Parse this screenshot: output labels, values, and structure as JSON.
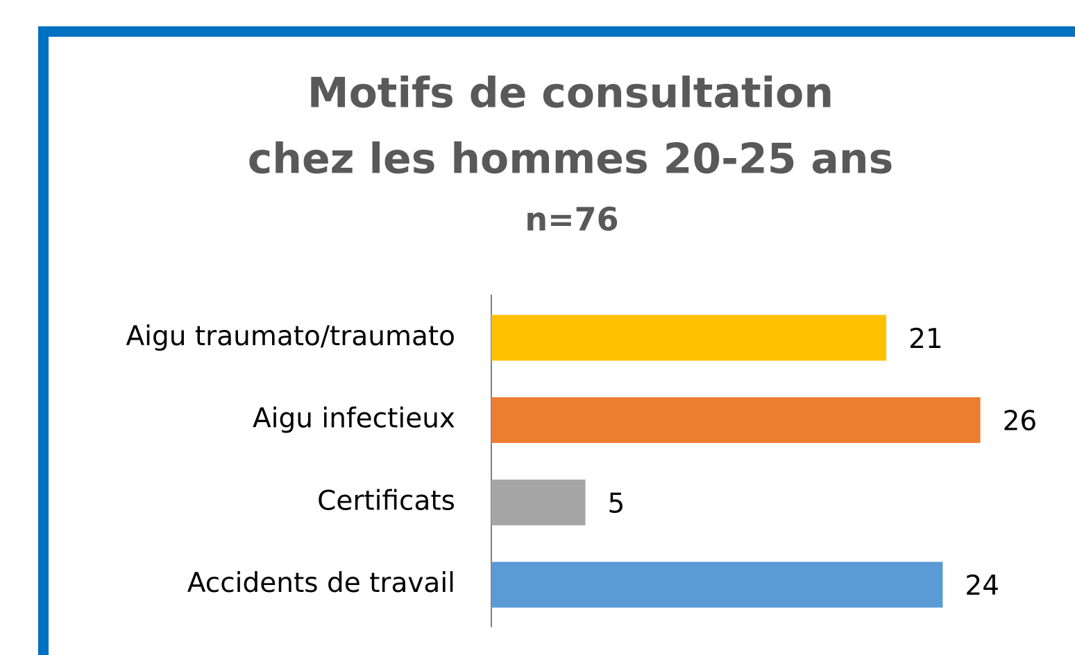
{
  "chart_data": {
    "type": "bar",
    "orientation": "horizontal",
    "title": [
      "Motifs de consultation",
      "chez les hommes 20-25 ans"
    ],
    "subtitle": "n=76",
    "categories": [
      "Aigu traumato/traumato",
      "Aigu infectieux",
      "Certificats",
      "Accidents de travail"
    ],
    "values": [
      21,
      26,
      5,
      24
    ],
    "colors": [
      "#ffc000",
      "#ed7d31",
      "#a5a5a5",
      "#5b9bd5"
    ],
    "xlim": [
      0,
      30
    ]
  }
}
